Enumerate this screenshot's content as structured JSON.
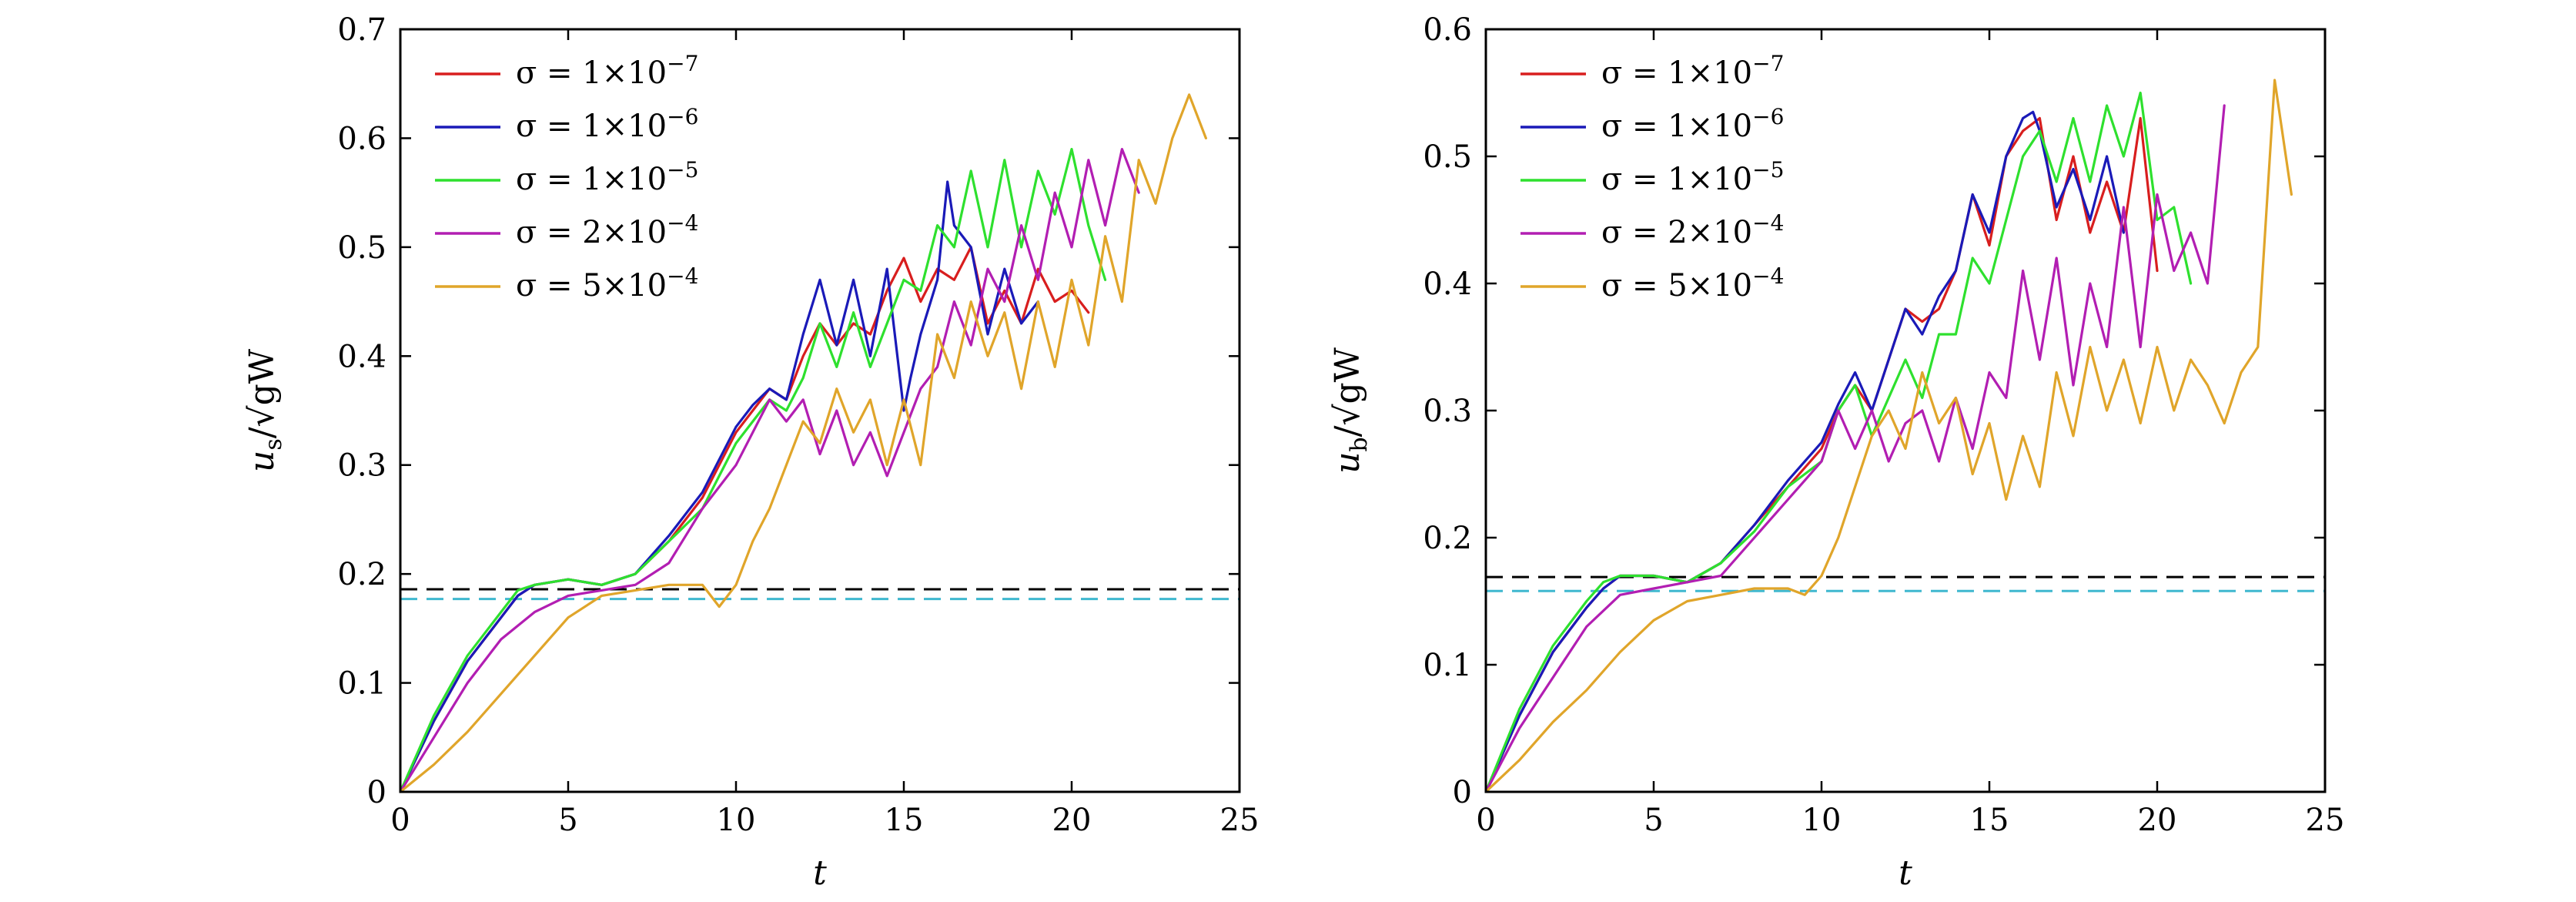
{
  "chart_data": [
    {
      "type": "line",
      "xlabel": "t",
      "ylabel": "u_s/√(gW)",
      "ylabel_var": "u",
      "ylabel_sub": "s",
      "ylabel_den": "/√gW",
      "xlim": [
        0,
        25
      ],
      "ylim": [
        0,
        0.7
      ],
      "xticks": [
        0,
        5,
        10,
        15,
        20,
        25
      ],
      "yticks": [
        0,
        0.1,
        0.2,
        0.3,
        0.4,
        0.5,
        0.6,
        0.7
      ],
      "legend_position": "top-left",
      "reference_lines": [
        {
          "color": "#000000",
          "y": 0.186
        },
        {
          "color": "#3fb8cf",
          "y": 0.177
        }
      ],
      "series": [
        {
          "name": "σ = 1×10−7",
          "color": "#d81e1e",
          "x": [
            0,
            1,
            2,
            3,
            3.5,
            4,
            5,
            6,
            7,
            8,
            9,
            10,
            10.5,
            11,
            11.5,
            12,
            12.5,
            13,
            13.5,
            14,
            14.5,
            15,
            15.5,
            16,
            16.5,
            17,
            17.5,
            18,
            18.5,
            19,
            19.5,
            20,
            20.5
          ],
          "y": [
            0,
            0.065,
            0.12,
            0.16,
            0.18,
            0.19,
            0.195,
            0.19,
            0.2,
            0.23,
            0.27,
            0.33,
            0.35,
            0.37,
            0.36,
            0.4,
            0.43,
            0.41,
            0.43,
            0.42,
            0.46,
            0.49,
            0.45,
            0.48,
            0.47,
            0.5,
            0.43,
            0.46,
            0.43,
            0.48,
            0.45,
            0.46,
            0.44
          ]
        },
        {
          "name": "σ = 1×10−6",
          "color": "#1a1ab8",
          "x": [
            0,
            1,
            2,
            3,
            3.5,
            4,
            5,
            6,
            7,
            8,
            9,
            10,
            10.5,
            11,
            11.5,
            12,
            12.5,
            13,
            13.5,
            14,
            14.5,
            15,
            15.2,
            15.5,
            16,
            16.3,
            16.5,
            17,
            17.5,
            18,
            18.5,
            19
          ],
          "y": [
            0,
            0.065,
            0.12,
            0.16,
            0.18,
            0.19,
            0.195,
            0.19,
            0.2,
            0.235,
            0.275,
            0.335,
            0.355,
            0.37,
            0.36,
            0.42,
            0.47,
            0.41,
            0.47,
            0.4,
            0.48,
            0.35,
            0.38,
            0.42,
            0.47,
            0.56,
            0.52,
            0.5,
            0.42,
            0.48,
            0.43,
            0.45
          ]
        },
        {
          "name": "σ = 1×10−5",
          "color": "#2ee02e",
          "x": [
            0,
            1,
            2,
            3,
            3.5,
            4,
            5,
            6,
            7,
            8,
            9,
            10,
            10.5,
            11,
            11.5,
            12,
            12.5,
            13,
            13.5,
            14,
            14.5,
            15,
            15.5,
            16,
            16.5,
            17,
            17.5,
            18,
            18.5,
            19,
            19.5,
            20,
            20.5,
            21
          ],
          "y": [
            0,
            0.07,
            0.125,
            0.165,
            0.185,
            0.19,
            0.195,
            0.19,
            0.2,
            0.23,
            0.26,
            0.32,
            0.34,
            0.36,
            0.35,
            0.38,
            0.43,
            0.39,
            0.44,
            0.39,
            0.43,
            0.47,
            0.46,
            0.52,
            0.5,
            0.57,
            0.5,
            0.58,
            0.5,
            0.57,
            0.53,
            0.59,
            0.52,
            0.47
          ]
        },
        {
          "name": "σ = 2×10−4",
          "color": "#b21eb2",
          "x": [
            0,
            1,
            2,
            3,
            4,
            5,
            6,
            7,
            8,
            9,
            10,
            10.5,
            11,
            11.5,
            12,
            12.5,
            13,
            13.5,
            14,
            14.5,
            15,
            15.5,
            16,
            16.5,
            17,
            17.5,
            18,
            18.5,
            19,
            19.5,
            20,
            20.5,
            21,
            21.5,
            22
          ],
          "y": [
            0,
            0.05,
            0.1,
            0.14,
            0.165,
            0.18,
            0.185,
            0.19,
            0.21,
            0.26,
            0.3,
            0.33,
            0.36,
            0.34,
            0.36,
            0.31,
            0.35,
            0.3,
            0.33,
            0.29,
            0.33,
            0.37,
            0.39,
            0.45,
            0.41,
            0.48,
            0.45,
            0.52,
            0.47,
            0.55,
            0.5,
            0.58,
            0.52,
            0.59,
            0.55
          ]
        },
        {
          "name": "σ = 5×10−4",
          "color": "#e0a52a",
          "x": [
            0,
            1,
            2,
            3,
            4,
            5,
            6,
            7,
            8,
            9,
            9.5,
            10,
            10.5,
            11,
            11.5,
            12,
            12.5,
            13,
            13.5,
            14,
            14.5,
            15,
            15.5,
            16,
            16.5,
            17,
            17.5,
            18,
            18.5,
            19,
            19.5,
            20,
            20.5,
            21,
            21.5,
            22,
            22.5,
            23,
            23.5,
            24
          ],
          "y": [
            0,
            0.025,
            0.055,
            0.09,
            0.125,
            0.16,
            0.18,
            0.185,
            0.19,
            0.19,
            0.17,
            0.19,
            0.23,
            0.26,
            0.3,
            0.34,
            0.32,
            0.37,
            0.33,
            0.36,
            0.3,
            0.36,
            0.3,
            0.42,
            0.38,
            0.45,
            0.4,
            0.44,
            0.37,
            0.45,
            0.39,
            0.47,
            0.41,
            0.51,
            0.45,
            0.58,
            0.54,
            0.6,
            0.64,
            0.6
          ]
        }
      ]
    },
    {
      "type": "line",
      "xlabel": "t",
      "ylabel": "u_b/√(gW)",
      "ylabel_var": "u",
      "ylabel_sub": "b",
      "ylabel_den": "/√gW",
      "xlim": [
        0,
        25
      ],
      "ylim": [
        0,
        0.6
      ],
      "xticks": [
        0,
        5,
        10,
        15,
        20,
        25
      ],
      "yticks": [
        0,
        0.1,
        0.2,
        0.3,
        0.4,
        0.5,
        0.6
      ],
      "legend_position": "top-left",
      "reference_lines": [
        {
          "color": "#000000",
          "y": 0.169
        },
        {
          "color": "#3fb8cf",
          "y": 0.158
        }
      ],
      "series": [
        {
          "name": "σ = 1×10−7",
          "color": "#d81e1e",
          "x": [
            0,
            1,
            2,
            3,
            3.5,
            4,
            5,
            6,
            7,
            8,
            9,
            10,
            10.5,
            11,
            11.5,
            12,
            12.5,
            13,
            13.5,
            14,
            14.5,
            15,
            15.5,
            16,
            16.5,
            17,
            17.5,
            18,
            18.5,
            19,
            19.5,
            20
          ],
          "y": [
            0,
            0.06,
            0.11,
            0.145,
            0.16,
            0.17,
            0.17,
            0.165,
            0.18,
            0.21,
            0.24,
            0.27,
            0.3,
            0.32,
            0.3,
            0.34,
            0.38,
            0.37,
            0.38,
            0.41,
            0.47,
            0.43,
            0.5,
            0.52,
            0.53,
            0.45,
            0.5,
            0.44,
            0.48,
            0.44,
            0.53,
            0.41
          ]
        },
        {
          "name": "σ = 1×10−6",
          "color": "#1a1ab8",
          "x": [
            0,
            1,
            2,
            3,
            3.5,
            4,
            5,
            6,
            7,
            8,
            9,
            10,
            10.5,
            11,
            11.5,
            12,
            12.5,
            13,
            13.5,
            14,
            14.5,
            15,
            15.5,
            16,
            16.3,
            16.5,
            17,
            17.5,
            18,
            18.5,
            19
          ],
          "y": [
            0,
            0.06,
            0.11,
            0.145,
            0.16,
            0.17,
            0.17,
            0.165,
            0.18,
            0.21,
            0.245,
            0.275,
            0.305,
            0.33,
            0.3,
            0.34,
            0.38,
            0.36,
            0.39,
            0.41,
            0.47,
            0.44,
            0.5,
            0.53,
            0.535,
            0.52,
            0.46,
            0.49,
            0.45,
            0.5,
            0.44
          ]
        },
        {
          "name": "σ = 1×10−5",
          "color": "#2ee02e",
          "x": [
            0,
            1,
            2,
            3,
            3.5,
            4,
            5,
            6,
            7,
            8,
            9,
            10,
            10.5,
            11,
            11.5,
            12,
            12.5,
            13,
            13.5,
            14,
            14.5,
            15,
            15.5,
            16,
            16.5,
            17,
            17.5,
            18,
            18.5,
            19,
            19.5,
            20,
            20.5,
            21
          ],
          "y": [
            0,
            0.065,
            0.115,
            0.15,
            0.165,
            0.17,
            0.17,
            0.165,
            0.18,
            0.205,
            0.24,
            0.26,
            0.3,
            0.32,
            0.28,
            0.31,
            0.34,
            0.31,
            0.36,
            0.36,
            0.42,
            0.4,
            0.45,
            0.5,
            0.52,
            0.48,
            0.53,
            0.48,
            0.54,
            0.5,
            0.55,
            0.45,
            0.46,
            0.4
          ]
        },
        {
          "name": "σ = 2×10−4",
          "color": "#b21eb2",
          "x": [
            0,
            1,
            2,
            3,
            4,
            5,
            6,
            7,
            8,
            9,
            10,
            10.5,
            11,
            11.5,
            12,
            12.5,
            13,
            13.5,
            14,
            14.5,
            15,
            15.5,
            16,
            16.5,
            17,
            17.5,
            18,
            18.5,
            19,
            19.5,
            20,
            20.5,
            21,
            21.5,
            22
          ],
          "y": [
            0,
            0.05,
            0.09,
            0.13,
            0.155,
            0.16,
            0.165,
            0.17,
            0.2,
            0.23,
            0.26,
            0.3,
            0.27,
            0.3,
            0.26,
            0.29,
            0.3,
            0.26,
            0.31,
            0.27,
            0.33,
            0.31,
            0.41,
            0.34,
            0.42,
            0.32,
            0.4,
            0.35,
            0.46,
            0.35,
            0.47,
            0.41,
            0.44,
            0.4,
            0.54
          ]
        },
        {
          "name": "σ = 5×10−4",
          "color": "#e0a52a",
          "x": [
            0,
            1,
            2,
            3,
            4,
            5,
            6,
            7,
            8,
            9,
            9.5,
            10,
            10.5,
            11,
            11.5,
            12,
            12.5,
            13,
            13.5,
            14,
            14.5,
            15,
            15.5,
            16,
            16.5,
            17,
            17.5,
            18,
            18.5,
            19,
            19.5,
            20,
            20.5,
            21,
            21.5,
            22,
            22.5,
            23,
            23.5,
            24
          ],
          "y": [
            0,
            0.025,
            0.055,
            0.08,
            0.11,
            0.135,
            0.15,
            0.155,
            0.16,
            0.16,
            0.155,
            0.17,
            0.2,
            0.24,
            0.28,
            0.3,
            0.27,
            0.33,
            0.29,
            0.31,
            0.25,
            0.29,
            0.23,
            0.28,
            0.24,
            0.33,
            0.28,
            0.35,
            0.3,
            0.34,
            0.29,
            0.35,
            0.3,
            0.34,
            0.32,
            0.29,
            0.33,
            0.35,
            0.56,
            0.47
          ]
        }
      ]
    }
  ]
}
